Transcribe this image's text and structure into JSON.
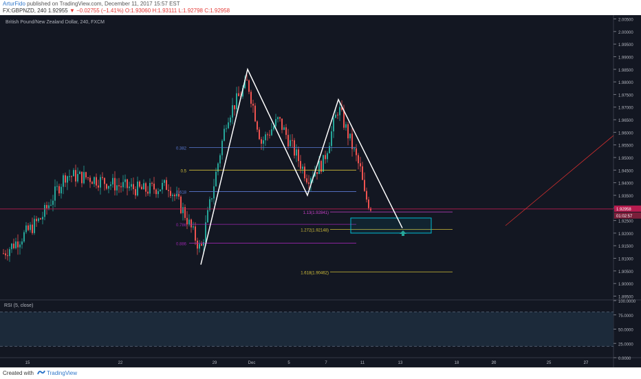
{
  "header": {
    "author": "ArturFido",
    "published": "published on TradingView.com, December 11, 2017 15:57 EST",
    "symbol": "FX:GBPNZD, 240",
    "last": "1.92955",
    "change": "▼ −0.02755 (−1.41%)",
    "ohlc": "O:1.93060 H:1.93111 L:1.92798 C:1.92958"
  },
  "chart_title": "British Pound/New Zealand Dollar, 240, FXCM",
  "rsi_label": "RSI (5, close)",
  "footer": {
    "created": "Created with",
    "brand": "TradingView"
  },
  "colors": {
    "background": "#131722",
    "up": "#26a69a",
    "down": "#ef5350",
    "pattern": "#ffffff",
    "fib_blue": "#2962ff",
    "fib_yellow": "#d4c13a",
    "fib_purple": "#9c27b0",
    "fib_magenta": "#c940c9",
    "target_box": "#00bcd4",
    "price_line": "#b71c4f",
    "trend_red": "#d32f2f"
  },
  "chart_data": [
    {
      "type": "candlestick",
      "y_axis_ticks": [
        "2.00500",
        "2.00000",
        "1.99500",
        "1.99000",
        "1.98500",
        "1.98000",
        "1.97500",
        "1.97000",
        "1.96500",
        "1.96000",
        "1.95500",
        "1.95000",
        "1.94500",
        "1.94000",
        "1.93500",
        "1.93000",
        "1.92500",
        "1.92000",
        "1.91500",
        "1.91000",
        "1.90500",
        "1.90000",
        "1.89500"
      ],
      "x_axis_ticks": [
        "15",
        "20",
        "22",
        "27",
        "29",
        "Dec",
        "5",
        "7",
        "11",
        "13",
        "18",
        "20",
        "25",
        "27"
      ],
      "ylim": [
        1.8935,
        2.0065
      ],
      "last_price_label": "1.92958",
      "countdown_label": "01:02:57",
      "pattern_points": [
        {
          "x": "28",
          "y": 1.9075
        },
        {
          "x": "30",
          "y": 1.985
        },
        {
          "x": "6",
          "y": 1.935
        },
        {
          "x": "8",
          "y": 1.973
        },
        {
          "x": "13",
          "y": 1.922
        }
      ],
      "fib_retracement_labels": [
        {
          "label": "0.382",
          "value": 1.954
        },
        {
          "label": "0.5",
          "value": 1.945
        },
        {
          "label": "0.618",
          "value": 1.9365
        },
        {
          "label": "0.786",
          "value": 1.9235
        },
        {
          "label": "0.886",
          "value": 1.916
        }
      ],
      "fib_extension_labels": [
        {
          "label": "1.13(1.92841)",
          "value": 1.92841
        },
        {
          "label": "1.272(1.92148)",
          "value": 1.92148
        },
        {
          "label": "1.618(1.90462)",
          "value": 1.90462
        }
      ],
      "target_zone": {
        "high": 1.926,
        "low": 1.92
      }
    },
    {
      "type": "line",
      "title": "RSI (5, close)",
      "y_axis_ticks": [
        "100.0000",
        "75.0000",
        "50.0000",
        "25.0000",
        "0.0000"
      ],
      "ylim": [
        0,
        100
      ],
      "levels": [
        80,
        20
      ]
    }
  ]
}
